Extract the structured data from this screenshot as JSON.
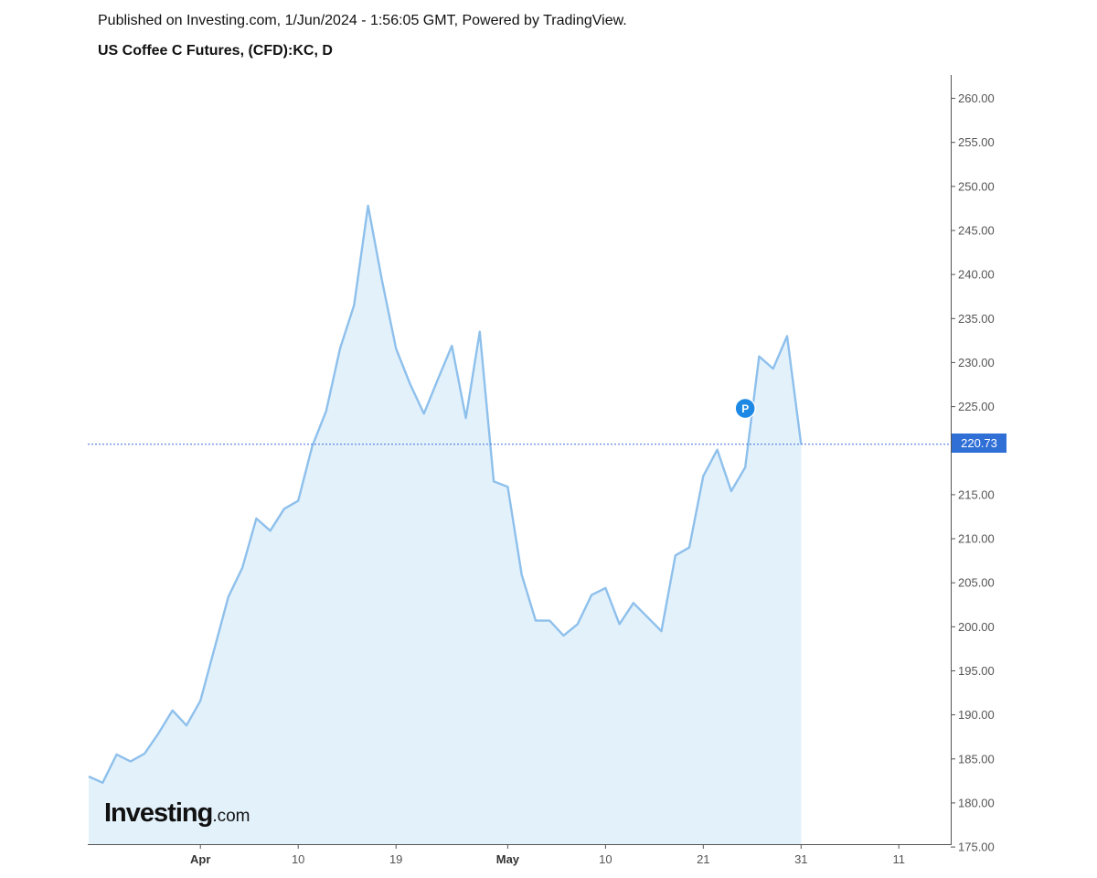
{
  "header": {
    "published": "Published on Investing.com, 1/Jun/2024 - 1:56:05 GMT, Powered by TradingView.",
    "title": "US Coffee C Futures, (CFD):KC, D"
  },
  "watermark": {
    "main": "Investing",
    "suffix": ".com"
  },
  "colors": {
    "line": "#8ec0ec",
    "fill": "#e3f1fb",
    "price_line": "#3b6fd8",
    "marker": "#1e88e5",
    "axis": "#555555"
  },
  "chart_data": {
    "type": "area",
    "x_index": [
      0,
      1,
      2,
      3,
      4,
      5,
      6,
      7,
      8,
      9,
      10,
      11,
      12,
      13,
      14,
      15,
      16,
      17,
      18,
      19,
      20,
      21,
      22,
      23,
      24,
      25,
      26,
      27,
      28,
      29,
      30,
      31,
      32,
      33,
      34,
      35,
      36,
      37,
      38,
      39,
      40,
      41,
      42,
      43,
      44,
      45,
      46,
      47,
      48,
      49,
      50,
      51
    ],
    "values": [
      183.0,
      182.3,
      185.5,
      184.7,
      185.6,
      187.9,
      190.5,
      188.8,
      191.6,
      197.5,
      203.4,
      206.7,
      212.3,
      210.9,
      213.4,
      214.3,
      220.5,
      224.5,
      231.6,
      236.5,
      247.8,
      239.3,
      231.6,
      227.6,
      224.2,
      228.1,
      231.9,
      223.7,
      233.5,
      216.5,
      215.9,
      205.9,
      200.7,
      200.7,
      199.0,
      200.3,
      203.6,
      204.4,
      200.3,
      202.7,
      201.1,
      199.5,
      208.1,
      209.0,
      217.1,
      220.1,
      215.4,
      218.1,
      230.7,
      229.3,
      233.0,
      220.73
    ],
    "x_ticks": [
      {
        "label": "Apr",
        "index": 8,
        "bold": true
      },
      {
        "label": "10",
        "index": 15,
        "bold": false
      },
      {
        "label": "19",
        "index": 22,
        "bold": false
      },
      {
        "label": "May",
        "index": 30,
        "bold": true
      },
      {
        "label": "10",
        "index": 37,
        "bold": false
      },
      {
        "label": "21",
        "index": 44,
        "bold": false
      },
      {
        "label": "31",
        "index": 51,
        "bold": false
      },
      {
        "label": "11",
        "index": 58,
        "bold": false
      }
    ],
    "y_ticks": [
      "260.00",
      "255.00",
      "250.00",
      "245.00",
      "240.00",
      "235.00",
      "230.00",
      "225.00",
      "215.00",
      "210.00",
      "205.00",
      "200.00",
      "195.00",
      "190.00",
      "185.00",
      "180.00",
      "175.00"
    ],
    "ylim": [
      175,
      262
    ],
    "last_price": 220.73,
    "last_price_label": "220.73",
    "marker": {
      "label": "P",
      "index": 47,
      "value": 224.8
    },
    "grid": false
  }
}
